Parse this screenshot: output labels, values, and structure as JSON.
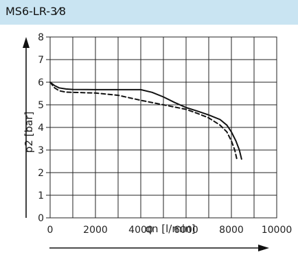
{
  "header": {
    "title": "MS6-LR-3⁄8"
  },
  "colors": {
    "header_bg": "#c9e4f2",
    "line": "#111111",
    "grid": "#222222"
  },
  "chart_data": {
    "type": "line",
    "title": "MS6-LR-3⁄8",
    "xlabel": "qn [l/min]",
    "ylabel": "p2 [bar]",
    "xlim": [
      0,
      10000
    ],
    "ylim": [
      0,
      8
    ],
    "xticks": [
      0,
      2000,
      4000,
      6000,
      8000,
      10000
    ],
    "yticks": [
      0,
      1,
      2,
      3,
      4,
      5,
      6,
      7,
      8
    ],
    "xtick_labels": [
      "0",
      "2000",
      "4000",
      "6000",
      "8000",
      "10000"
    ],
    "ytick_labels": [
      "0",
      "1",
      "2",
      "3",
      "4",
      "5",
      "6",
      "7",
      "8"
    ],
    "grid": true,
    "series": [
      {
        "style": "solid",
        "x": [
          0,
          200,
          400,
          700,
          1000,
          2000,
          3000,
          4000,
          4500,
          5000,
          5500,
          6000,
          6500,
          7000,
          7500,
          7800,
          8000,
          8200,
          8350,
          8450
        ],
        "y": [
          6.0,
          5.85,
          5.75,
          5.7,
          5.68,
          5.67,
          5.67,
          5.67,
          5.55,
          5.35,
          5.1,
          4.88,
          4.72,
          4.55,
          4.35,
          4.1,
          3.8,
          3.4,
          3.0,
          2.6
        ]
      },
      {
        "style": "dashed",
        "x": [
          0,
          200,
          400,
          700,
          1000,
          2000,
          3000,
          4000,
          5000,
          6000,
          6500,
          7000,
          7500,
          7800,
          8000,
          8150,
          8250
        ],
        "y": [
          6.0,
          5.75,
          5.62,
          5.56,
          5.55,
          5.52,
          5.42,
          5.2,
          5.0,
          4.8,
          4.62,
          4.42,
          4.1,
          3.8,
          3.4,
          3.0,
          2.55
        ]
      }
    ]
  }
}
